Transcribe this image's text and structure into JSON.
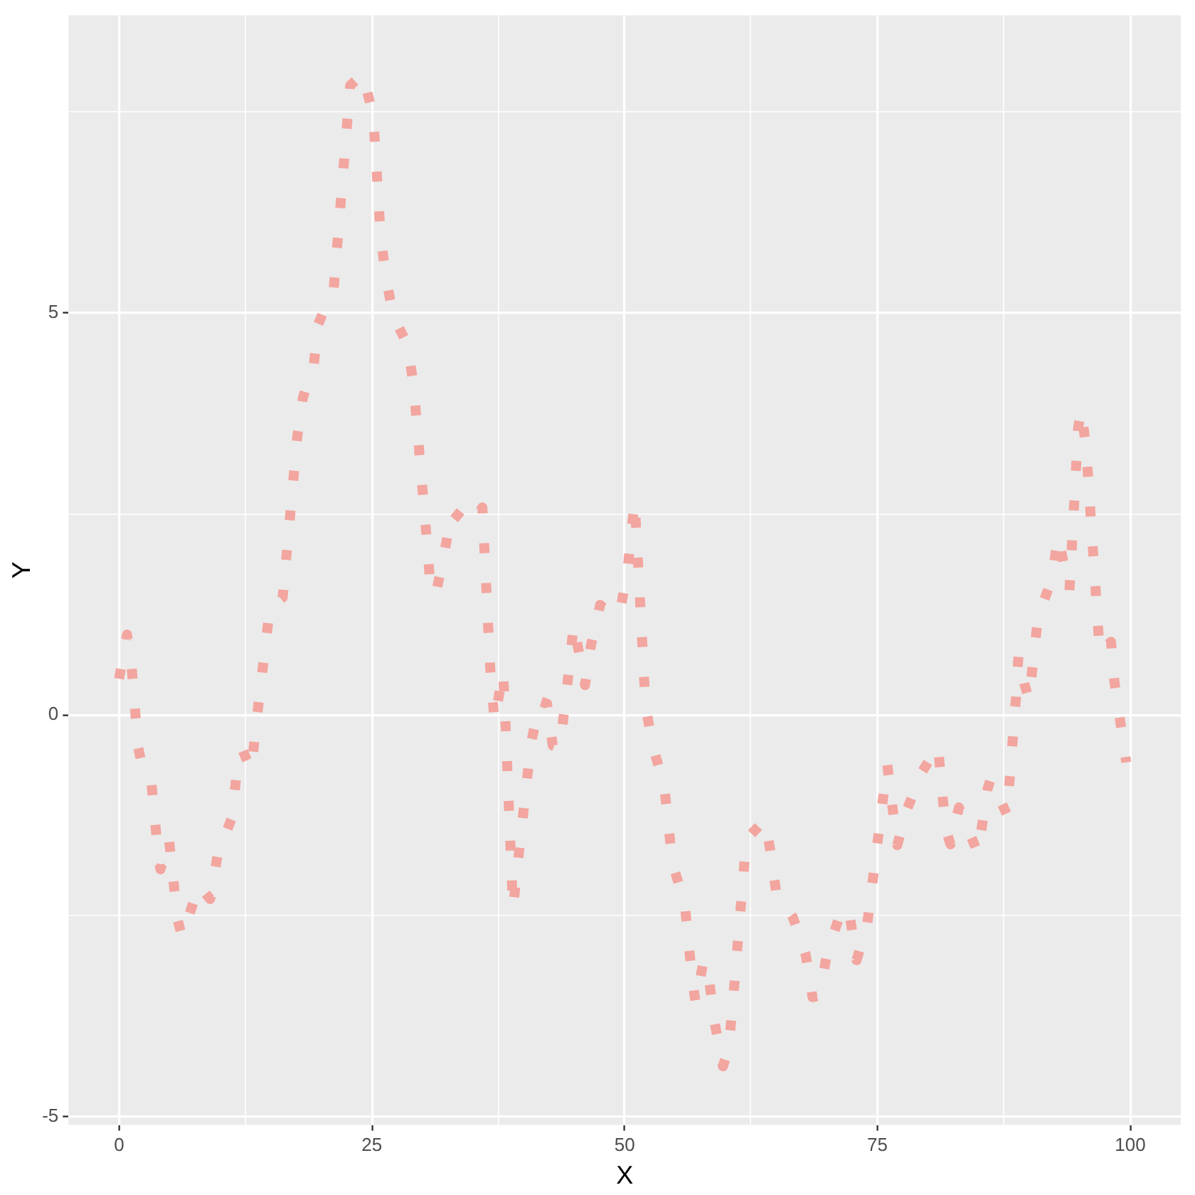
{
  "chart_data": {
    "type": "line",
    "xlabel": "X",
    "ylabel": "Y",
    "x": [
      0,
      0.79,
      1.24,
      1.88,
      2.12,
      3.15,
      3.91,
      4.09,
      4.93,
      5.78,
      6.2,
      6.62,
      7.89,
      9.01,
      9.76,
      11.16,
      11.58,
      12.25,
      13.09,
      13.51,
      14.92,
      16.18,
      17.63,
      18.19,
      19.27,
      19.7,
      20.44,
      21.2,
      22.86,
      24.12,
      25.14,
      25.88,
      26.4,
      27.11,
      28.51,
      29.12,
      30.48,
      30.8,
      31.32,
      32.17,
      32.91,
      34.74,
      35.93,
      36.71,
      37.13,
      37.97,
      38.16,
      38.96,
      39.42,
      40.74,
      41.63,
      42.33,
      42.89,
      43.6,
      44.54,
      44.96,
      46.08,
      46.69,
      47.58,
      48.47,
      49.5,
      50.25,
      50.98,
      51.23,
      52.07,
      52.78,
      53.9,
      54.75,
      55.93,
      56.71,
      57.02,
      57.8,
      58.4,
      58.92,
      59.72,
      60.28,
      60.65,
      61.97,
      62.08,
      63.84,
      64.36,
      65.01,
      66.65,
      67.92,
      68.58,
      69.28,
      69.99,
      71.25,
      71.79,
      72.32,
      72.94,
      73.97,
      75.47,
      75.97,
      76.45,
      76.96,
      77.94,
      79.4,
      80.99,
      81.74,
      82.22,
      83.06,
      84.61,
      84.93,
      85.91,
      86.2,
      87.81,
      88.69,
      88.95,
      89.53,
      89.99,
      90.88,
      92.2,
      92.87,
      93.51,
      93.99,
      94.22,
      94.85,
      95.19,
      95.69,
      96.75,
      96.99,
      98.1,
      98.44,
      99.61
    ],
    "series": [
      {
        "color": "#f3a59f",
        "values": [
          0.45,
          1.0,
          0.6,
          -0.4,
          -0.54,
          -0.78,
          -1.79,
          -1.92,
          -1.54,
          -2.54,
          -2.75,
          -2.61,
          -2.12,
          -2.29,
          -1.73,
          -1.28,
          -0.78,
          -0.45,
          -0.69,
          -0.16,
          1.34,
          1.46,
          3.47,
          3.95,
          4.37,
          4.86,
          5.08,
          5.26,
          7.83,
          7.97,
          7.44,
          5.94,
          5.44,
          4.96,
          4.61,
          4.11,
          2.11,
          1.57,
          1.5,
          2.01,
          2.54,
          2.35,
          2.58,
          0.57,
          -0.08,
          0.54,
          0.07,
          -2.41,
          -1.86,
          -0.35,
          0.17,
          0.14,
          -0.38,
          -0.41,
          0.61,
          1.13,
          0.37,
          0.88,
          1.37,
          1.26,
          1.26,
          1.76,
          2.66,
          2.12,
          0.11,
          -0.39,
          -0.87,
          -1.86,
          -2.33,
          -3.32,
          -3.58,
          -3.06,
          -3.34,
          -3.84,
          -4.37,
          -4.14,
          -3.65,
          -1.64,
          -1.54,
          -1.31,
          -1.65,
          -2.22,
          -2.52,
          -2.99,
          -3.51,
          -3.49,
          -2.98,
          -2.5,
          -2.39,
          -2.54,
          -3.05,
          -2.62,
          -1.12,
          -0.62,
          -1.11,
          -1.62,
          -1.17,
          -0.71,
          -0.39,
          -1.41,
          -1.61,
          -1.15,
          -1.62,
          -1.72,
          -0.91,
          -0.8,
          -1.24,
          0.2,
          0.74,
          0.39,
          0.19,
          1.22,
          1.67,
          2.22,
          1.83,
          1.55,
          2.07,
          3.57,
          3.8,
          3.23,
          1.23,
          0.77,
          0.91,
          0.41,
          -0.59
        ]
      }
    ],
    "xlim": [
      -5,
      105
    ],
    "ylim": [
      -5.1,
      8.7
    ],
    "xticks": [
      0,
      {
        "value": 12.5,
        "label": null
      },
      25,
      {
        "value": 37.5,
        "label": null
      },
      50,
      {
        "value": 62.5,
        "label": null
      },
      75,
      {
        "value": 87.5,
        "label": null
      },
      100
    ],
    "yticks": [
      -5,
      {
        "value": -2.5,
        "label": null
      },
      0,
      {
        "value": 2.5,
        "label": null
      },
      5,
      {
        "value": 7.5,
        "label": null
      }
    ],
    "grid": true,
    "line_style": "dotted"
  }
}
